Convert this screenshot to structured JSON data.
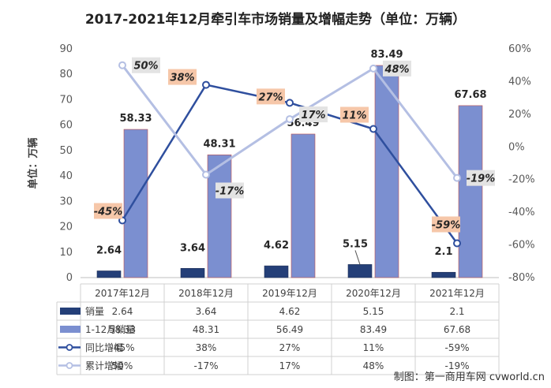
{
  "chart_data": {
    "type": "bar",
    "title": "2017-2021年12月牵引车市场销量及增幅走势（单位：万辆）",
    "ylabel": "单位：万辆",
    "ylim": [
      0,
      90
    ],
    "y_ticks": [
      "0",
      "10",
      "20",
      "30",
      "40",
      "50",
      "60",
      "70",
      "80",
      "90"
    ],
    "y2lim": [
      -80,
      60
    ],
    "y2_ticks": [
      "-80%",
      "-60%",
      "-40%",
      "-20%",
      "0%",
      "20%",
      "40%",
      "60%"
    ],
    "categories": [
      "2017年12月",
      "2018年12月",
      "2019年12月",
      "2020年12月",
      "2021年12月"
    ],
    "series": [
      {
        "name": "销量",
        "kind": "bar",
        "axis": "left",
        "color": "#243f78",
        "values": [
          2.64,
          3.64,
          4.62,
          5.15,
          2.1
        ],
        "labels": [
          "2.64",
          "3.64",
          "4.62",
          "5.15",
          "2.1"
        ]
      },
      {
        "name": "1-12月销量",
        "kind": "bar",
        "axis": "left",
        "color": "#7b8fd0",
        "values": [
          58.33,
          48.31,
          56.49,
          83.49,
          67.68
        ],
        "labels": [
          "58.33",
          "48.31",
          "56.49",
          "83.49",
          "67.68"
        ]
      },
      {
        "name": "同比增幅",
        "kind": "line",
        "axis": "right",
        "color": "#2f4f9e",
        "values": [
          -45,
          38,
          27,
          11,
          -59
        ],
        "labels": [
          "-45%",
          "38%",
          "27%",
          "11%",
          "-59%"
        ]
      },
      {
        "name": "累计增幅",
        "kind": "line",
        "axis": "right",
        "color": "#b4bfe3",
        "values": [
          50,
          -17,
          17,
          48,
          -19
        ],
        "labels": [
          "50%",
          "-17%",
          "17%",
          "48%",
          "-19%"
        ]
      }
    ],
    "legend": "data-table-bottom",
    "grid": false
  },
  "watermark": "制图：第一商用车网 cvworld.cn"
}
